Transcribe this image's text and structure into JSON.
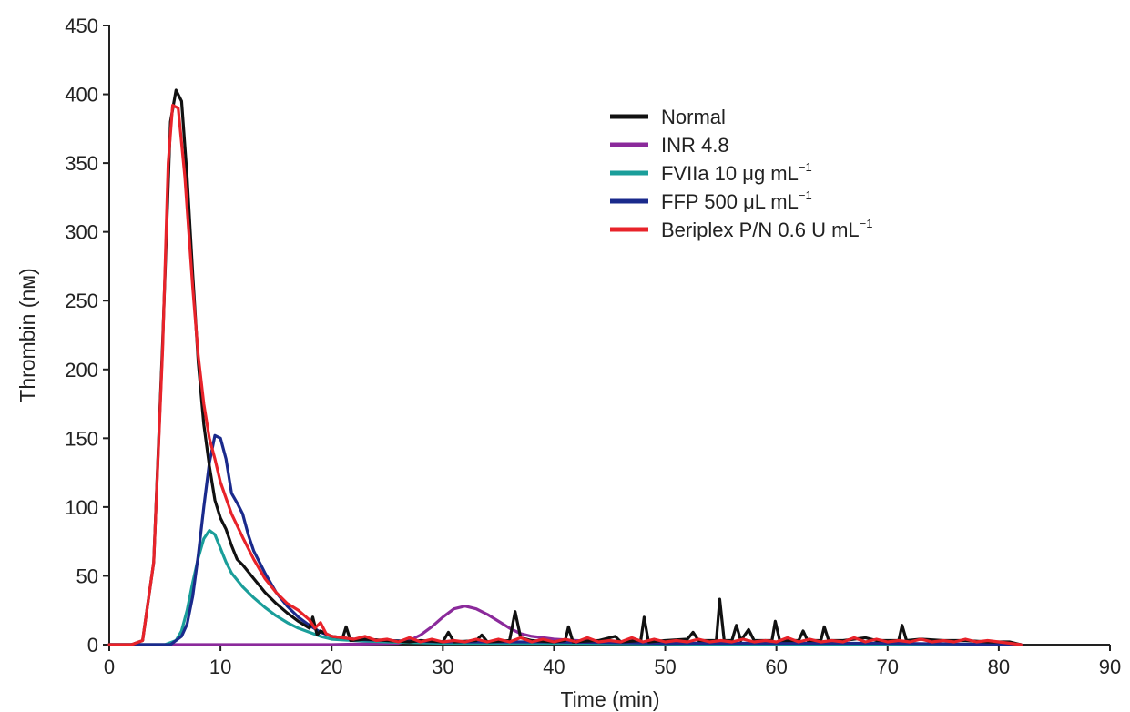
{
  "chart_data": {
    "type": "line",
    "xlabel": "Time (min)",
    "ylabel": "Thrombin (nм)",
    "xlim": [
      0,
      90
    ],
    "ylim": [
      0,
      450
    ],
    "xticks": [
      0,
      10,
      20,
      30,
      40,
      50,
      60,
      70,
      80,
      90
    ],
    "yticks": [
      0,
      50,
      100,
      150,
      200,
      250,
      300,
      350,
      400,
      450
    ],
    "grid": false,
    "legend_position": "top-right",
    "series": [
      {
        "name": "Normal",
        "legend_base": "Normal",
        "legend_sup": "",
        "color": "#111111",
        "points": [
          [
            0,
            0
          ],
          [
            2,
            0
          ],
          [
            3,
            3
          ],
          [
            4,
            60
          ],
          [
            4.8,
            220
          ],
          [
            5.5,
            380
          ],
          [
            6,
            403
          ],
          [
            6.5,
            395
          ],
          [
            7,
            340
          ],
          [
            7.5,
            270
          ],
          [
            8,
            205
          ],
          [
            8.5,
            160
          ],
          [
            9,
            130
          ],
          [
            9.5,
            105
          ],
          [
            10,
            92
          ],
          [
            10.5,
            84
          ],
          [
            11,
            72
          ],
          [
            11.5,
            62
          ],
          [
            12,
            58
          ],
          [
            13,
            48
          ],
          [
            14,
            38
          ],
          [
            15,
            30
          ],
          [
            16,
            23
          ],
          [
            17,
            17
          ],
          [
            18,
            12
          ],
          [
            18.3,
            20
          ],
          [
            18.7,
            7
          ],
          [
            19,
            10
          ],
          [
            20,
            6
          ],
          [
            21,
            5
          ],
          [
            21.3,
            13
          ],
          [
            21.7,
            3
          ],
          [
            23,
            4
          ],
          [
            25,
            3
          ],
          [
            27,
            2
          ],
          [
            28,
            3
          ],
          [
            30,
            2
          ],
          [
            30.5,
            9
          ],
          [
            31,
            2
          ],
          [
            33,
            3
          ],
          [
            33.5,
            7
          ],
          [
            34,
            2
          ],
          [
            36,
            3
          ],
          [
            36.5,
            24
          ],
          [
            37,
            5
          ],
          [
            38,
            3
          ],
          [
            40,
            2
          ],
          [
            41,
            3
          ],
          [
            41.3,
            13
          ],
          [
            41.7,
            2
          ],
          [
            44,
            3
          ],
          [
            45.5,
            6
          ],
          [
            46,
            2
          ],
          [
            47.8,
            3
          ],
          [
            48.1,
            20
          ],
          [
            48.5,
            2
          ],
          [
            50,
            3
          ],
          [
            52,
            4
          ],
          [
            52.5,
            9
          ],
          [
            53,
            3
          ],
          [
            54.6,
            3
          ],
          [
            54.9,
            33
          ],
          [
            55.3,
            3
          ],
          [
            56,
            3
          ],
          [
            56.4,
            14
          ],
          [
            56.8,
            3
          ],
          [
            57.5,
            11
          ],
          [
            58,
            3
          ],
          [
            59.6,
            3
          ],
          [
            59.9,
            17
          ],
          [
            60.3,
            3
          ],
          [
            62,
            3
          ],
          [
            62.4,
            10
          ],
          [
            62.8,
            3
          ],
          [
            64,
            3
          ],
          [
            64.3,
            13
          ],
          [
            64.7,
            3
          ],
          [
            66,
            3
          ],
          [
            68,
            5
          ],
          [
            69,
            3
          ],
          [
            71,
            3
          ],
          [
            71.3,
            14
          ],
          [
            71.7,
            3
          ],
          [
            73,
            4
          ],
          [
            75,
            3
          ],
          [
            77,
            3
          ],
          [
            79,
            2
          ],
          [
            81,
            2
          ],
          [
            82,
            0
          ]
        ]
      },
      {
        "name": "INR 4.8",
        "legend_base": "INR 4.8",
        "legend_sup": "",
        "color": "#8b2a9b",
        "points": [
          [
            0,
            0
          ],
          [
            20,
            0
          ],
          [
            26,
            1
          ],
          [
            27,
            3
          ],
          [
            28,
            7
          ],
          [
            29,
            13
          ],
          [
            30,
            20
          ],
          [
            31,
            26
          ],
          [
            32,
            28
          ],
          [
            33,
            26
          ],
          [
            34,
            22
          ],
          [
            35,
            17
          ],
          [
            36,
            12
          ],
          [
            37,
            8
          ],
          [
            38,
            6
          ],
          [
            39,
            5
          ],
          [
            40,
            4
          ],
          [
            42,
            3
          ],
          [
            45,
            2
          ],
          [
            50,
            1
          ],
          [
            60,
            1
          ],
          [
            70,
            0
          ],
          [
            82,
            0
          ]
        ]
      },
      {
        "name": "FVIIa 10 μg mL",
        "legend_base": "FVIIa 10 μg mL",
        "legend_sup": "−1",
        "color": "#1a9e9a",
        "points": [
          [
            0,
            0
          ],
          [
            5,
            0
          ],
          [
            6,
            3
          ],
          [
            6.5,
            10
          ],
          [
            7,
            25
          ],
          [
            7.5,
            45
          ],
          [
            8,
            63
          ],
          [
            8.5,
            77
          ],
          [
            9,
            83
          ],
          [
            9.5,
            80
          ],
          [
            10,
            70
          ],
          [
            10.5,
            60
          ],
          [
            11,
            52
          ],
          [
            12,
            42
          ],
          [
            13,
            34
          ],
          [
            14,
            27
          ],
          [
            15,
            21
          ],
          [
            16,
            16
          ],
          [
            17,
            12
          ],
          [
            18,
            9
          ],
          [
            19,
            6
          ],
          [
            20,
            4
          ],
          [
            22,
            3
          ],
          [
            25,
            2
          ],
          [
            30,
            1
          ],
          [
            40,
            1
          ],
          [
            60,
            0
          ],
          [
            82,
            0
          ]
        ]
      },
      {
        "name": "FFP 500 μL mL",
        "legend_base": "FFP 500 μL mL",
        "legend_sup": "−1",
        "color": "#1a2a8c",
        "points": [
          [
            0,
            0
          ],
          [
            5.5,
            0
          ],
          [
            6.5,
            6
          ],
          [
            7,
            15
          ],
          [
            7.5,
            35
          ],
          [
            8,
            65
          ],
          [
            8.5,
            100
          ],
          [
            9,
            132
          ],
          [
            9.5,
            152
          ],
          [
            10,
            150
          ],
          [
            10.5,
            135
          ],
          [
            11,
            110
          ],
          [
            11.5,
            103
          ],
          [
            12,
            95
          ],
          [
            12.5,
            80
          ],
          [
            13,
            68
          ],
          [
            14,
            52
          ],
          [
            15,
            38
          ],
          [
            16,
            28
          ],
          [
            17,
            20
          ],
          [
            18,
            14
          ],
          [
            19,
            9
          ],
          [
            20,
            6
          ],
          [
            22,
            4
          ],
          [
            25,
            3
          ],
          [
            30,
            2
          ],
          [
            40,
            2
          ],
          [
            50,
            1
          ],
          [
            60,
            1
          ],
          [
            70,
            1
          ],
          [
            82,
            0
          ]
        ]
      },
      {
        "name": "Beriplex P/N 0.6 U mL",
        "legend_base": "Beriplex P/N 0.6 U mL",
        "legend_sup": "−1",
        "color": "#e8232a",
        "points": [
          [
            0,
            0
          ],
          [
            2,
            0
          ],
          [
            3,
            3
          ],
          [
            4,
            60
          ],
          [
            4.8,
            215
          ],
          [
            5.3,
            350
          ],
          [
            5.7,
            392
          ],
          [
            6.2,
            390
          ],
          [
            6.8,
            340
          ],
          [
            7.5,
            260
          ],
          [
            8,
            210
          ],
          [
            8.5,
            175
          ],
          [
            9,
            150
          ],
          [
            9.5,
            135
          ],
          [
            10,
            118
          ],
          [
            11,
            95
          ],
          [
            12,
            78
          ],
          [
            13,
            62
          ],
          [
            14,
            48
          ],
          [
            15,
            38
          ],
          [
            16,
            30
          ],
          [
            17,
            25
          ],
          [
            18,
            18
          ],
          [
            18.5,
            12
          ],
          [
            19,
            16
          ],
          [
            19.5,
            8
          ],
          [
            20,
            6
          ],
          [
            21,
            5
          ],
          [
            22,
            4
          ],
          [
            23,
            6
          ],
          [
            24,
            3
          ],
          [
            25,
            4
          ],
          [
            26,
            2
          ],
          [
            27,
            5
          ],
          [
            28,
            2
          ],
          [
            29,
            4
          ],
          [
            30,
            2
          ],
          [
            31,
            3
          ],
          [
            32,
            2
          ],
          [
            33,
            4
          ],
          [
            34,
            2
          ],
          [
            35,
            4
          ],
          [
            36,
            2
          ],
          [
            37,
            5
          ],
          [
            38,
            2
          ],
          [
            39,
            4
          ],
          [
            40,
            2
          ],
          [
            41,
            4
          ],
          [
            42,
            2
          ],
          [
            43,
            5
          ],
          [
            44,
            2
          ],
          [
            45,
            3
          ],
          [
            46,
            2
          ],
          [
            47,
            5
          ],
          [
            48,
            2
          ],
          [
            49,
            4
          ],
          [
            50,
            2
          ],
          [
            51,
            3
          ],
          [
            52,
            2
          ],
          [
            53,
            4
          ],
          [
            54,
            2
          ],
          [
            55,
            3
          ],
          [
            56,
            2
          ],
          [
            57,
            4
          ],
          [
            58,
            2
          ],
          [
            59,
            3
          ],
          [
            60,
            2
          ],
          [
            61,
            5
          ],
          [
            62,
            2
          ],
          [
            63,
            4
          ],
          [
            64,
            2
          ],
          [
            65,
            3
          ],
          [
            66,
            2
          ],
          [
            67,
            5
          ],
          [
            68,
            2
          ],
          [
            69,
            4
          ],
          [
            70,
            2
          ],
          [
            71,
            3
          ],
          [
            72,
            2
          ],
          [
            73,
            4
          ],
          [
            74,
            2
          ],
          [
            75,
            3
          ],
          [
            76,
            2
          ],
          [
            77,
            4
          ],
          [
            78,
            2
          ],
          [
            79,
            3
          ],
          [
            80,
            2
          ],
          [
            81,
            1
          ],
          [
            82,
            0
          ]
        ]
      }
    ]
  }
}
